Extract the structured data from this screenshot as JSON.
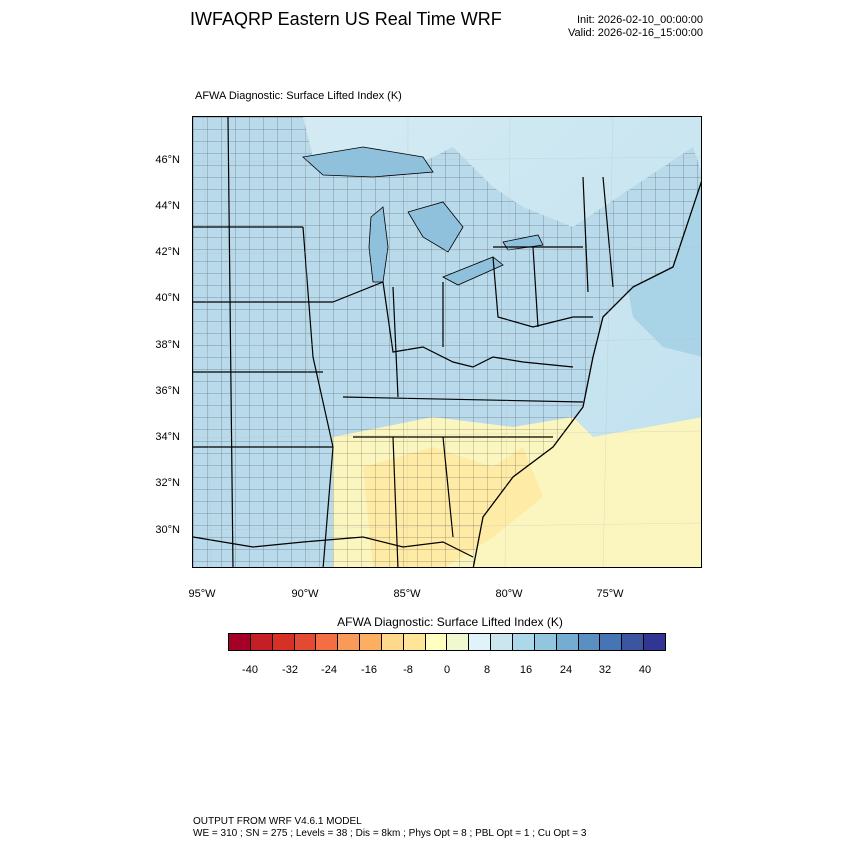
{
  "header": {
    "title": "IWFAQRP Eastern US Real Time WRF",
    "init": "Init: 2026-02-10_00:00:00",
    "valid": "Valid: 2026-02-16_15:00:00"
  },
  "plot": {
    "subtitle": "AFWA Diagnostic: Surface Lifted Index   (K)",
    "lat_labels": [
      "46°N",
      "44°N",
      "42°N",
      "40°N",
      "38°N",
      "36°N",
      "34°N",
      "32°N",
      "30°N"
    ],
    "lon_labels": [
      "95°W",
      "90°W",
      "85°W",
      "80°W",
      "75°W"
    ]
  },
  "colorbar": {
    "title": "AFWA Diagnostic: Surface Lifted Index  (K)",
    "labels": [
      "-40",
      "-32",
      "-24",
      "-16",
      "-8",
      "0",
      "8",
      "16",
      "24",
      "32",
      "40"
    ],
    "colors": [
      "#a50026",
      "#c41e27",
      "#d73027",
      "#e34a33",
      "#f46d43",
      "#f89a5a",
      "#fdae61",
      "#fed98b",
      "#fee597",
      "#ffffbf",
      "#f0f8d0",
      "#e0f3f8",
      "#cbe6ef",
      "#abd9e9",
      "#92c5de",
      "#74add1",
      "#5b8fc2",
      "#4575b4",
      "#3b55a0",
      "#313695"
    ]
  },
  "footer": {
    "line1": "OUTPUT FROM WRF V4.6.1 MODEL",
    "line2": "WE = 310 ; SN = 275 ; Levels = 38 ; Dis = 8km ; Phys Opt = 8 ; PBL Opt = 1 ; Cu Opt = 3"
  }
}
